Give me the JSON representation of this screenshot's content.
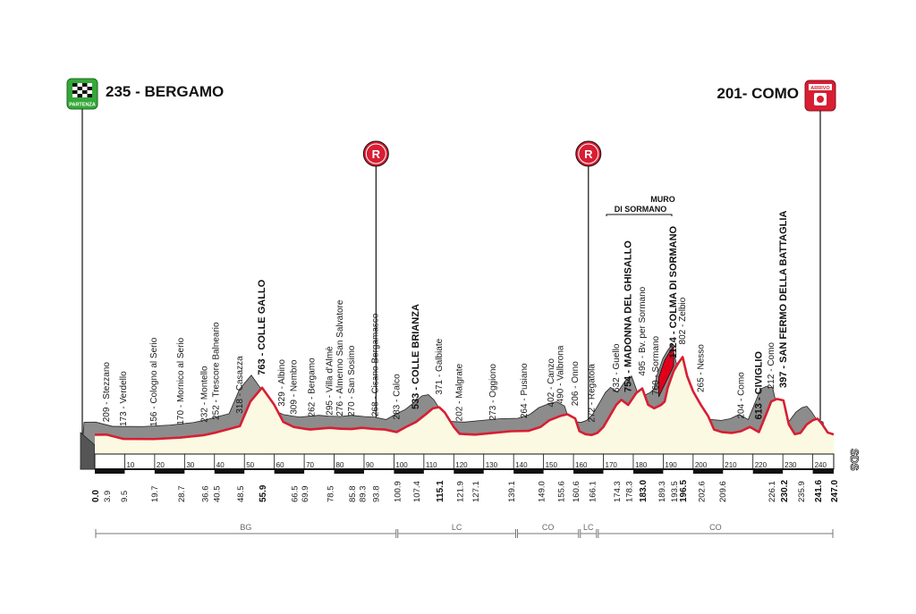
{
  "stage": {
    "start": "235 - BERGAMO",
    "finish": "201- COMO",
    "start_badge": "PARTENZA",
    "finish_badge": "ARRIVO",
    "feed_label": "R",
    "muro_line1": "MURO",
    "muro_line2": "DI SORMANO",
    "logo": "SDS"
  },
  "chart_data": {
    "type": "area",
    "xlim": [
      0,
      247
    ],
    "x_ticks": [
      10,
      20,
      30,
      40,
      50,
      60,
      70,
      80,
      90,
      100,
      110,
      120,
      130,
      140,
      150,
      160,
      170,
      180,
      190,
      200,
      210,
      220,
      230,
      240
    ],
    "profile": [
      [
        0,
        209
      ],
      [
        3.9,
        210
      ],
      [
        9.5,
        160
      ],
      [
        19.7,
        158
      ],
      [
        28.7,
        175
      ],
      [
        36.6,
        205
      ],
      [
        40.5,
        235
      ],
      [
        48.5,
        310
      ],
      [
        52,
        600
      ],
      [
        55.9,
        763
      ],
      [
        60,
        560
      ],
      [
        63,
        360
      ],
      [
        66.5,
        300
      ],
      [
        69.9,
        280
      ],
      [
        72,
        270
      ],
      [
        78.5,
        290
      ],
      [
        82,
        280
      ],
      [
        85.8,
        276
      ],
      [
        89.3,
        290
      ],
      [
        93.8,
        275
      ],
      [
        97,
        270
      ],
      [
        100.9,
        240
      ],
      [
        104,
        300
      ],
      [
        107.4,
        360
      ],
      [
        111,
        460
      ],
      [
        113,
        520
      ],
      [
        115.1,
        533
      ],
      [
        117,
        470
      ],
      [
        120,
        300
      ],
      [
        121.9,
        220
      ],
      [
        124,
        215
      ],
      [
        127.1,
        210
      ],
      [
        133,
        230
      ],
      [
        139.1,
        250
      ],
      [
        145,
        255
      ],
      [
        149,
        300
      ],
      [
        152,
        380
      ],
      [
        155.6,
        430
      ],
      [
        158,
        450
      ],
      [
        160.6,
        400
      ],
      [
        162,
        250
      ],
      [
        164,
        215
      ],
      [
        166.1,
        206
      ],
      [
        168,
        230
      ],
      [
        170,
        300
      ],
      [
        172,
        420
      ],
      [
        174.3,
        560
      ],
      [
        176,
        620
      ],
      [
        178.3,
        560
      ],
      [
        181,
        700
      ],
      [
        183,
        754
      ],
      [
        185,
        560
      ],
      [
        187,
        520
      ],
      [
        189.3,
        560
      ],
      [
        190.5,
        600
      ],
      [
        191.5,
        760
      ],
      [
        193.5,
        960
      ],
      [
        195,
        1050
      ],
      [
        196.5,
        1124
      ],
      [
        198,
        900
      ],
      [
        200,
        720
      ],
      [
        202.6,
        560
      ],
      [
        205,
        430
      ],
      [
        207,
        270
      ],
      [
        209.6,
        240
      ],
      [
        213,
        230
      ],
      [
        216,
        250
      ],
      [
        219,
        300
      ],
      [
        222,
        240
      ],
      [
        225,
        500
      ],
      [
        226.1,
        600
      ],
      [
        228,
        630
      ],
      [
        230.2,
        613
      ],
      [
        232,
        330
      ],
      [
        234,
        215
      ],
      [
        235.9,
        230
      ],
      [
        238,
        330
      ],
      [
        240,
        380
      ],
      [
        241.6,
        397
      ],
      [
        243,
        340
      ],
      [
        245,
        235
      ],
      [
        247,
        212
      ]
    ],
    "km_labels": [
      {
        "km": 0.0,
        "text": "0.0",
        "bold": true
      },
      {
        "km": 3.9,
        "text": "3.9"
      },
      {
        "km": 9.5,
        "text": "9.5"
      },
      {
        "km": 19.7,
        "text": "19.7"
      },
      {
        "km": 28.7,
        "text": "28.7"
      },
      {
        "km": 36.6,
        "text": "36.6"
      },
      {
        "km": 40.5,
        "text": "40.5"
      },
      {
        "km": 48.5,
        "text": "48.5"
      },
      {
        "km": 55.9,
        "text": "55.9",
        "bold": true
      },
      {
        "km": 66.5,
        "text": "66.5"
      },
      {
        "km": 69.9,
        "text": "69.9"
      },
      {
        "km": 78.5,
        "text": "78.5"
      },
      {
        "km": 85.8,
        "text": "85.8"
      },
      {
        "km": 89.3,
        "text": "89.3"
      },
      {
        "km": 93.8,
        "text": "93.8"
      },
      {
        "km": 100.9,
        "text": "100.9"
      },
      {
        "km": 107.4,
        "text": "107.4"
      },
      {
        "km": 115.1,
        "text": "115.1",
        "bold": true
      },
      {
        "km": 121.9,
        "text": "121.9"
      },
      {
        "km": 127.1,
        "text": "127.1"
      },
      {
        "km": 139.1,
        "text": "139.1"
      },
      {
        "km": 149.0,
        "text": "149.0"
      },
      {
        "km": 155.6,
        "text": "155.6"
      },
      {
        "km": 160.6,
        "text": "160.6"
      },
      {
        "km": 166.1,
        "text": "166.1"
      },
      {
        "km": 174.3,
        "text": "174.3"
      },
      {
        "km": 178.3,
        "text": "178.3"
      },
      {
        "km": 183.0,
        "text": "183.0",
        "bold": true
      },
      {
        "km": 189.3,
        "text": "189.3"
      },
      {
        "km": 193.5,
        "text": "193.5"
      },
      {
        "km": 196.5,
        "text": "196.5",
        "bold": true
      },
      {
        "km": 202.6,
        "text": "202.6"
      },
      {
        "km": 209.6,
        "text": "209.6"
      },
      {
        "km": 226.1,
        "text": "226.1"
      },
      {
        "km": 230.2,
        "text": "230.2",
        "bold": true
      },
      {
        "km": 235.9,
        "text": "235.9"
      },
      {
        "km": 241.6,
        "text": "241.6",
        "bold": true
      },
      {
        "km": 247.0,
        "text": "247.0",
        "bold": true
      }
    ],
    "places": [
      {
        "km": 3.9,
        "parts": [
          {
            "t": "209 - Stezzano",
            "b": false
          }
        ]
      },
      {
        "km": 9.5,
        "parts": [
          {
            "t": "173 - Verdello",
            "b": false
          }
        ]
      },
      {
        "km": 19.7,
        "parts": [
          {
            "t": "156 - Cologno al Serio",
            "b": false
          }
        ]
      },
      {
        "km": 28.7,
        "parts": [
          {
            "t": "170 - Mornico al Serio",
            "b": false
          }
        ]
      },
      {
        "km": 36.6,
        "parts": [
          {
            "t": "232 - Montello",
            "b": false
          }
        ]
      },
      {
        "km": 40.5,
        "parts": [
          {
            "t": "252 - Trescore Balneario",
            "b": false
          }
        ]
      },
      {
        "km": 48.5,
        "parts": [
          {
            "t": "318 - Casazza",
            "b": false
          }
        ]
      },
      {
        "km": 55.9,
        "parts": [
          {
            "t": "763 - COLLE GALLO",
            "b": true
          }
        ]
      },
      {
        "km": 62.5,
        "parts": [
          {
            "t": "329 - Albino",
            "b": false
          }
        ]
      },
      {
        "km": 66.5,
        "parts": [
          {
            "t": "309 - Nembro",
            "b": false
          }
        ]
      },
      {
        "km": 72.5,
        "parts": [
          {
            "t": "262 - Bergamo",
            "b": false
          }
        ]
      },
      {
        "km": 78.5,
        "parts": [
          {
            "t": "295 - Villa d'Almè",
            "b": false
          }
        ]
      },
      {
        "km": 82.0,
        "parts": [
          {
            "t": "276 - Almenno San Salvatore",
            "b": false
          }
        ]
      },
      {
        "km": 85.8,
        "parts": [
          {
            "t": "270 - San Sosimo",
            "b": false
          }
        ]
      },
      {
        "km": 93.8,
        "parts": [
          {
            "t": "268 - Cisano Bergamasco",
            "b": false
          }
        ]
      },
      {
        "km": 100.9,
        "parts": [
          {
            "t": "283 - Calco",
            "b": false
          }
        ]
      },
      {
        "km": 107.4,
        "parts": [
          {
            "t": "533 - COLLE BRIANZA",
            "b": true
          }
        ]
      },
      {
        "km": 115.1,
        "parts": [
          {
            "t": "371 - Galbiate",
            "b": false
          }
        ]
      },
      {
        "km": 121.9,
        "parts": [
          {
            "t": "202 - Malgrate",
            "b": false
          }
        ]
      },
      {
        "km": 133.0,
        "parts": [
          {
            "t": "273 - Oggiono",
            "b": false
          }
        ]
      },
      {
        "km": 143.5,
        "parts": [
          {
            "t": "264 - Pusiano",
            "b": false
          }
        ]
      },
      {
        "km": 152.5,
        "parts": [
          {
            "t": "402 - Canzo",
            "b": false
          }
        ]
      },
      {
        "km": 155.6,
        "parts": [
          {
            "t": "490 - Valbrona",
            "b": false
          }
        ]
      },
      {
        "km": 160.6,
        "parts": [
          {
            "t": "206 - Onno",
            "b": false
          }
        ]
      },
      {
        "km": 166.1,
        "parts": [
          {
            "t": "272 - Regatola",
            "b": false
          }
        ]
      },
      {
        "km": 174.3,
        "parts": [
          {
            "t": "632 - Guello",
            "b": false
          }
        ]
      },
      {
        "km": 178.3,
        "parts": [
          {
            "t": "754 - MADONNA DEL GHISALLO",
            "b": true
          }
        ]
      },
      {
        "km": 183.0,
        "parts": [
          {
            "t": "495 - Bv. per Sormano",
            "b": false
          }
        ]
      },
      {
        "km": 187.5,
        "parts": [
          {
            "t": "760 - Sormano",
            "b": false
          }
        ]
      },
      {
        "km": 193.5,
        "parts": [
          {
            "t": "1124 - COLMA DI SORMANO",
            "b": true
          }
        ]
      },
      {
        "km": 196.5,
        "parts": [
          {
            "t": "802 - Zelbio",
            "b": false
          }
        ]
      },
      {
        "km": 202.6,
        "parts": [
          {
            "t": "265 - Nesso",
            "b": false
          }
        ]
      },
      {
        "km": 216.0,
        "parts": [
          {
            "t": "204 - Como",
            "b": false
          }
        ]
      },
      {
        "km": 222.0,
        "parts": [
          {
            "t": "613 - CIVIGLIO",
            "b": true
          }
        ]
      },
      {
        "km": 226.1,
        "parts": [
          {
            "t": "212 - Como",
            "b": false
          }
        ]
      },
      {
        "km": 230.2,
        "parts": [
          {
            "t": "397 - SAN FERMO DELLA BATTAGLIA",
            "b": true
          }
        ]
      }
    ],
    "feed_zones": [
      94,
      165
    ],
    "regions": [
      {
        "from": 0,
        "to": 101,
        "label": "BG"
      },
      {
        "from": 101,
        "to": 141,
        "label": "LC"
      },
      {
        "from": 141,
        "to": 162,
        "label": "CO"
      },
      {
        "from": 162,
        "to": 168,
        "label": "LC"
      },
      {
        "from": 168,
        "to": 247,
        "label": "CO"
      }
    ],
    "muro_range": [
      191.5,
      196.5
    ]
  },
  "colors": {
    "profile_fill": "#fbf9e2",
    "profile_shadow": "#8c8c8c",
    "route_line": "#d81e33",
    "muro": "#e0001b",
    "badge_green": "#35a83a",
    "badge_red": "#d81e33"
  }
}
